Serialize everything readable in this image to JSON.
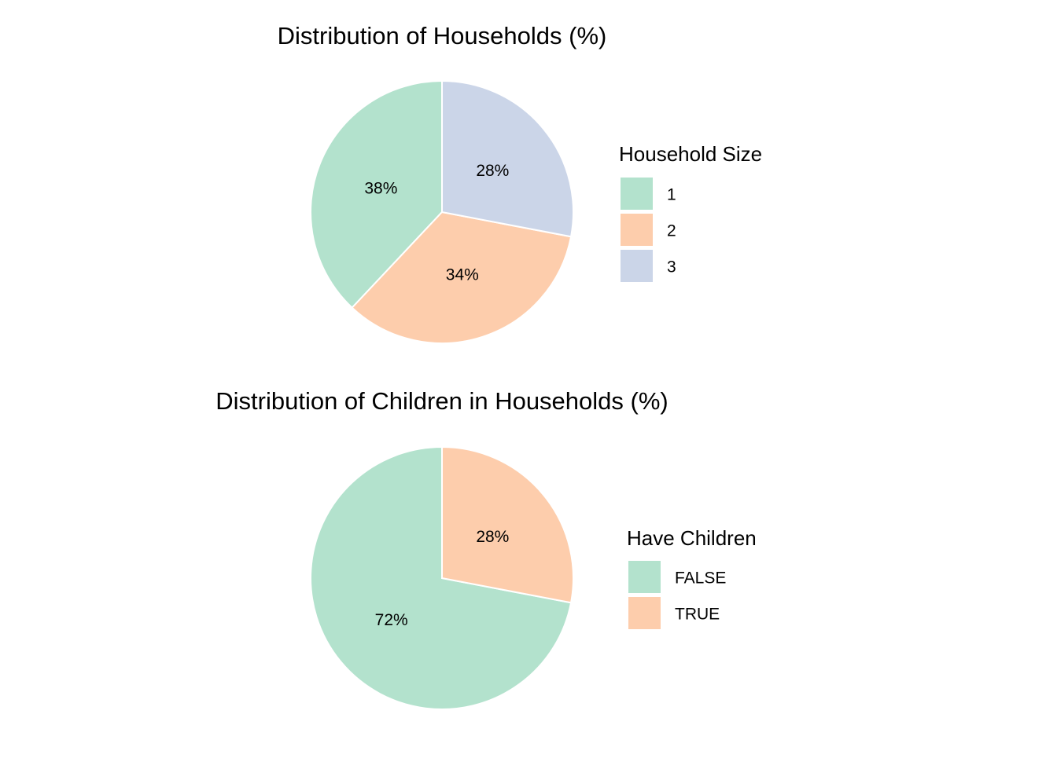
{
  "chart_data": [
    {
      "type": "pie",
      "title": "Distribution of Households (%)",
      "legend_title": "Household Size",
      "legend_position": "right",
      "categories": [
        "1",
        "2",
        "3"
      ],
      "values": [
        38,
        34,
        28
      ],
      "labels": [
        "38%",
        "34%",
        "28%"
      ],
      "colors": [
        "#b3e2cd",
        "#fdcdac",
        "#cbd5e8"
      ]
    },
    {
      "type": "pie",
      "title": "Distribution of Children in Households (%)",
      "legend_title": "Have Children",
      "legend_position": "right",
      "categories": [
        "FALSE",
        "TRUE"
      ],
      "values": [
        72,
        28
      ],
      "labels": [
        "72%",
        "28%"
      ],
      "colors": [
        "#b3e2cd",
        "#fdcdac"
      ]
    }
  ]
}
